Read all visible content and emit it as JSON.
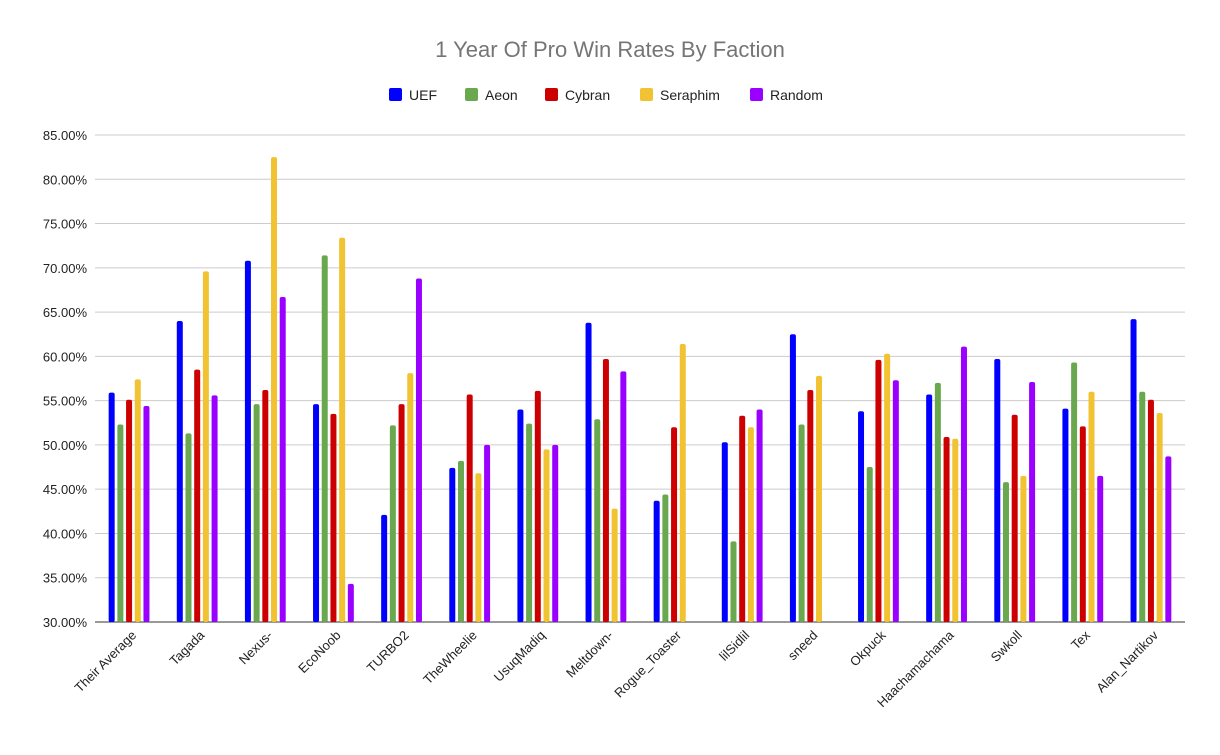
{
  "chart_data": {
    "type": "bar",
    "title": "1 Year Of Pro Win Rates By Faction",
    "xlabel": "",
    "ylabel": "",
    "ylim": [
      0.3,
      0.85
    ],
    "y_ticks": [
      "30.00%",
      "35.00%",
      "40.00%",
      "45.00%",
      "50.00%",
      "55.00%",
      "60.00%",
      "65.00%",
      "70.00%",
      "75.00%",
      "80.00%",
      "85.00%"
    ],
    "grid": true,
    "legend_position": "top-center",
    "categories": [
      "Their Average",
      "Tagada",
      "Nexus-",
      "EcoNoob",
      "TURBO2",
      "TheWheelie",
      "UsuqMadiq",
      "Meltdown-",
      "Rogue_Toaster",
      "lilSidlil",
      "sneed",
      "Okpuck",
      "Haachamachama",
      "Swkoll",
      "Tex",
      "Alan_Nartikov"
    ],
    "series": [
      {
        "name": "UEF",
        "color": "#0000ff",
        "values": [
          0.559,
          0.64,
          0.708,
          0.546,
          0.421,
          0.474,
          0.54,
          0.638,
          0.437,
          0.503,
          0.625,
          0.538,
          0.557,
          0.597,
          0.541,
          0.642
        ]
      },
      {
        "name": "Aeon",
        "color": "#6aa84f",
        "values": [
          0.523,
          0.513,
          0.546,
          0.714,
          0.522,
          0.482,
          0.524,
          0.529,
          0.444,
          0.391,
          0.523,
          0.475,
          0.57,
          0.458,
          0.593,
          0.56
        ]
      },
      {
        "name": "Cybran",
        "color": "#cc0000",
        "values": [
          0.551,
          0.585,
          0.562,
          0.535,
          0.546,
          0.557,
          0.561,
          0.597,
          0.52,
          0.533,
          0.562,
          0.596,
          0.509,
          0.534,
          0.521,
          0.551
        ]
      },
      {
        "name": "Seraphim",
        "color": "#f1c232",
        "values": [
          0.574,
          0.696,
          0.825,
          0.734,
          0.581,
          0.468,
          0.495,
          0.428,
          0.614,
          0.52,
          0.578,
          0.603,
          0.507,
          0.465,
          0.56,
          0.536
        ]
      },
      {
        "name": "Random",
        "color": "#9900ff",
        "values": [
          0.544,
          0.556,
          0.667,
          0.343,
          0.688,
          0.5,
          0.5,
          0.583,
          null,
          0.54,
          null,
          0.573,
          0.611,
          0.571,
          0.465,
          0.487
        ]
      }
    ]
  }
}
